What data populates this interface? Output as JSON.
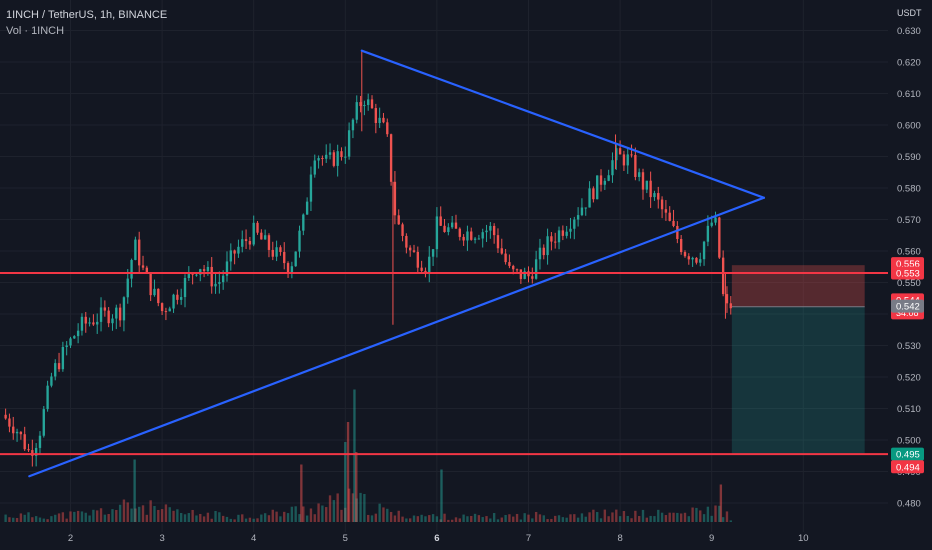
{
  "header": {
    "title": "1INCH / TetherUS, 1h, BINANCE",
    "volume_label": "Vol · 1INCH",
    "currency": "USDT"
  },
  "colors": {
    "background": "#131722",
    "up": "#26a69a",
    "down": "#ef5350",
    "trendline": "#2962ff",
    "level_line": "#f23645",
    "axis_text": "#b2b5be",
    "grid": "#1e222d"
  },
  "chart_data": {
    "type": "candlestick",
    "symbol": "1INCH / TetherUS",
    "interval": "1h",
    "exchange": "BINANCE",
    "y_ticks": [
      "0.480",
      "0.490",
      "0.500",
      "0.510",
      "0.520",
      "0.530",
      "0.540",
      "0.550",
      "0.560",
      "0.570",
      "0.580",
      "0.590",
      "0.600",
      "0.610",
      "0.620",
      "0.630"
    ],
    "x_ticks": [
      {
        "label": "2",
        "bold": false
      },
      {
        "label": "3",
        "bold": false
      },
      {
        "label": "4",
        "bold": false
      },
      {
        "label": "5",
        "bold": false
      },
      {
        "label": "6",
        "bold": true
      },
      {
        "label": "7",
        "bold": false
      },
      {
        "label": "8",
        "bold": false
      },
      {
        "label": "9",
        "bold": false
      },
      {
        "label": "10",
        "bold": false
      }
    ],
    "ylim": [
      0.4755,
      0.6345
    ],
    "xlim": [
      1.25,
      10.4
    ],
    "price_badges": [
      {
        "label": "0.556",
        "value": 0.556,
        "color": "#f23645"
      },
      {
        "label": "0.553",
        "value": 0.553,
        "color": "#f23645"
      },
      {
        "label": "0.544",
        "value": 0.5445,
        "color": "#f23645",
        "countdown": "34:08"
      },
      {
        "label": "0.542",
        "value": 0.5425,
        "color": "#787b86"
      },
      {
        "label": "0.495",
        "value": 0.4955,
        "color": "#089981"
      },
      {
        "label": "0.494",
        "value": 0.4915,
        "color": "#f23645"
      }
    ],
    "horizontal_levels": [
      0.553,
      0.4955
    ],
    "trendlines": [
      {
        "name": "triangle-upper",
        "from": [
          5.18,
          0.6236
        ],
        "to": [
          9.57,
          0.5769
        ]
      },
      {
        "name": "triangle-lower",
        "from": [
          1.55,
          0.4885
        ],
        "to": [
          9.57,
          0.5769
        ]
      }
    ],
    "short_position": {
      "x_start": 9.22,
      "x_end": 10.67,
      "entry": 0.5423,
      "stop": 0.5555,
      "target": 0.4955
    },
    "anchor_path": [
      [
        1.25,
        0.508
      ],
      [
        1.4,
        0.504
      ],
      [
        1.55,
        0.496
      ],
      [
        1.65,
        0.501
      ],
      [
        1.8,
        0.521
      ],
      [
        1.95,
        0.529
      ],
      [
        2.1,
        0.536
      ],
      [
        2.3,
        0.539
      ],
      [
        2.55,
        0.541
      ],
      [
        2.7,
        0.562
      ],
      [
        2.8,
        0.553
      ],
      [
        3.0,
        0.541
      ],
      [
        3.2,
        0.548
      ],
      [
        3.4,
        0.556
      ],
      [
        3.6,
        0.549
      ],
      [
        3.8,
        0.56
      ],
      [
        4.0,
        0.566
      ],
      [
        4.2,
        0.56
      ],
      [
        4.4,
        0.555
      ],
      [
        4.55,
        0.57
      ],
      [
        4.65,
        0.592
      ],
      [
        4.8,
        0.588
      ],
      [
        5.0,
        0.592
      ],
      [
        5.1,
        0.603
      ],
      [
        5.2,
        0.609
      ],
      [
        5.35,
        0.602
      ],
      [
        5.45,
        0.597
      ],
      [
        5.55,
        0.57
      ],
      [
        5.7,
        0.56
      ],
      [
        5.9,
        0.555
      ],
      [
        6.0,
        0.568
      ],
      [
        6.2,
        0.566
      ],
      [
        6.4,
        0.566
      ],
      [
        6.6,
        0.567
      ],
      [
        6.8,
        0.553
      ],
      [
        7.0,
        0.552
      ],
      [
        7.2,
        0.562
      ],
      [
        7.4,
        0.568
      ],
      [
        7.6,
        0.575
      ],
      [
        7.8,
        0.583
      ],
      [
        7.95,
        0.59
      ],
      [
        8.1,
        0.589
      ],
      [
        8.25,
        0.581
      ],
      [
        8.4,
        0.576
      ],
      [
        8.55,
        0.568
      ],
      [
        8.7,
        0.56
      ],
      [
        8.85,
        0.558
      ],
      [
        9.0,
        0.569
      ],
      [
        9.05,
        0.568
      ],
      [
        9.1,
        0.553
      ],
      [
        9.14,
        0.541
      ],
      [
        9.22,
        0.543
      ]
    ],
    "volume_anchor": [
      [
        1.4,
        0.45
      ],
      [
        1.8,
        0.45
      ],
      [
        2.2,
        0.6
      ],
      [
        2.7,
        1.2
      ],
      [
        3.2,
        0.6
      ],
      [
        4.0,
        0.4
      ],
      [
        4.6,
        0.95
      ],
      [
        5.1,
        1.6
      ],
      [
        5.3,
        1.0
      ],
      [
        5.6,
        0.5
      ],
      [
        6.2,
        0.35
      ],
      [
        7.0,
        0.45
      ],
      [
        7.6,
        0.6
      ],
      [
        8.2,
        0.55
      ],
      [
        8.7,
        0.6
      ],
      [
        9.1,
        0.9
      ],
      [
        9.22,
        0.2
      ]
    ],
    "volume_spikes": [
      {
        "x": 2.7,
        "height": 2.5
      },
      {
        "x": 4.52,
        "height": 2.3
      },
      {
        "x": 5.0,
        "height": 3.2
      },
      {
        "x": 5.03,
        "height": 4.0
      },
      {
        "x": 5.1,
        "height": 5.3
      },
      {
        "x": 5.12,
        "height": 2.8
      },
      {
        "x": 6.05,
        "height": 2.1
      },
      {
        "x": 9.1,
        "height": 1.5
      }
    ]
  }
}
